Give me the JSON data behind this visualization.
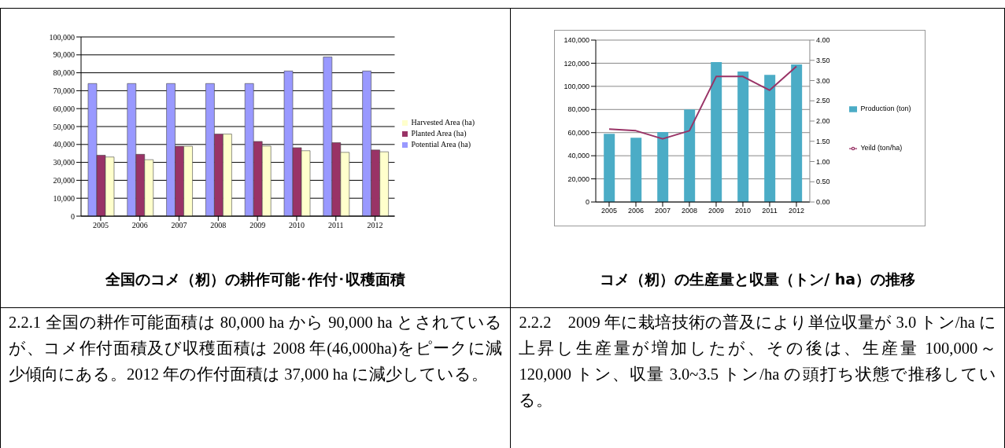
{
  "chart_data": [
    {
      "type": "bar",
      "title": "全国のコメ（籾）の耕作可能･作付･収穫面積",
      "categories": [
        "2005",
        "2006",
        "2007",
        "2008",
        "2009",
        "2010",
        "2011",
        "2012"
      ],
      "series": [
        {
          "name": "Potential Area (ha)",
          "color": "#9999ff",
          "values": [
            74000,
            74000,
            74000,
            74000,
            74000,
            81000,
            88800,
            81000
          ]
        },
        {
          "name": "Planted Area (ha)",
          "color": "#993366",
          "values": [
            34000,
            34500,
            39000,
            45800,
            41700,
            38200,
            41000,
            36900
          ]
        },
        {
          "name": "Harvested Area (ha)",
          "color": "#ffffcc",
          "values": [
            33000,
            31500,
            39000,
            45800,
            39100,
            36500,
            35600,
            35900
          ]
        }
      ],
      "ylim": [
        0,
        100000
      ],
      "yticks": [
        {
          "value": 0,
          "label": "0"
        },
        {
          "value": 10000,
          "label": "10,000"
        },
        {
          "value": 20000,
          "label": "20,000"
        },
        {
          "value": 30000,
          "label": "30,000"
        },
        {
          "value": 40000,
          "label": "40,000"
        },
        {
          "value": 50000,
          "label": "50,000"
        },
        {
          "value": 60000,
          "label": "60,000"
        },
        {
          "value": 70000,
          "label": "70,000"
        },
        {
          "value": 80000,
          "label": "80,000"
        },
        {
          "value": 90000,
          "label": "90,000"
        },
        {
          "value": 100000,
          "label": "100,000"
        }
      ],
      "grid": "y",
      "legend": "right",
      "annotations": [
        "2.2.1 全国の耕作可能面積は 80,000 ha から 90,000 ha とされているが、コメ作付面積及び収穫面積は 2008 年(46,000ha)をピークに減少傾向にある。2012 年の作付面積は 37,000 ha に減少している。"
      ]
    },
    {
      "type": "bar",
      "title": "コメ（籾）の生産量と収量（トン/ ha）の推移",
      "categories": [
        "2005",
        "2006",
        "2007",
        "2008",
        "2009",
        "2010",
        "2011",
        "2012"
      ],
      "series": [
        {
          "name": "Production (ton)",
          "color": "#4bacc6",
          "values": [
            59000,
            55500,
            60500,
            80000,
            121000,
            112800,
            110000,
            119000
          ]
        },
        {
          "name": "Yeild (ton/ha)",
          "type": "line",
          "axis": "y2",
          "color": "#993366",
          "values": [
            1.8,
            1.76,
            1.56,
            1.76,
            3.1,
            3.1,
            2.76,
            3.35
          ]
        }
      ],
      "ylim": [
        0,
        140000
      ],
      "yticks": [
        {
          "value": 0,
          "label": "0"
        },
        {
          "value": 20000,
          "label": "20,000"
        },
        {
          "value": 40000,
          "label": "40,000"
        },
        {
          "value": 60000,
          "label": "60,000"
        },
        {
          "value": 80000,
          "label": "80,000"
        },
        {
          "value": 100000,
          "label": "100,000"
        },
        {
          "value": 120000,
          "label": "120,000"
        },
        {
          "value": 140000,
          "label": "140,000"
        }
      ],
      "y2lim": [
        0,
        4
      ],
      "y2ticks": [
        {
          "value": 0,
          "label": "0.00"
        },
        {
          "value": 0.5,
          "label": "0.50"
        },
        {
          "value": 1,
          "label": "1.00"
        },
        {
          "value": 1.5,
          "label": "1.50"
        },
        {
          "value": 2,
          "label": "2.00"
        },
        {
          "value": 2.5,
          "label": "2.50"
        },
        {
          "value": 3,
          "label": "3.00"
        },
        {
          "value": 3.5,
          "label": "3.50"
        },
        {
          "value": 4,
          "label": "4.00"
        }
      ],
      "grid": "y",
      "legend": "right",
      "marker": "none",
      "annotations": [
        "2.2.2　2009 年に栽培技術の普及により単位収量が 3.0 トン/ha に上昇し生産量が増加したが、その後は、生産量 100,000～120,000 トン、収量 3.0~3.5 トン/ha の頭打ち状態で推移している。"
      ]
    }
  ]
}
